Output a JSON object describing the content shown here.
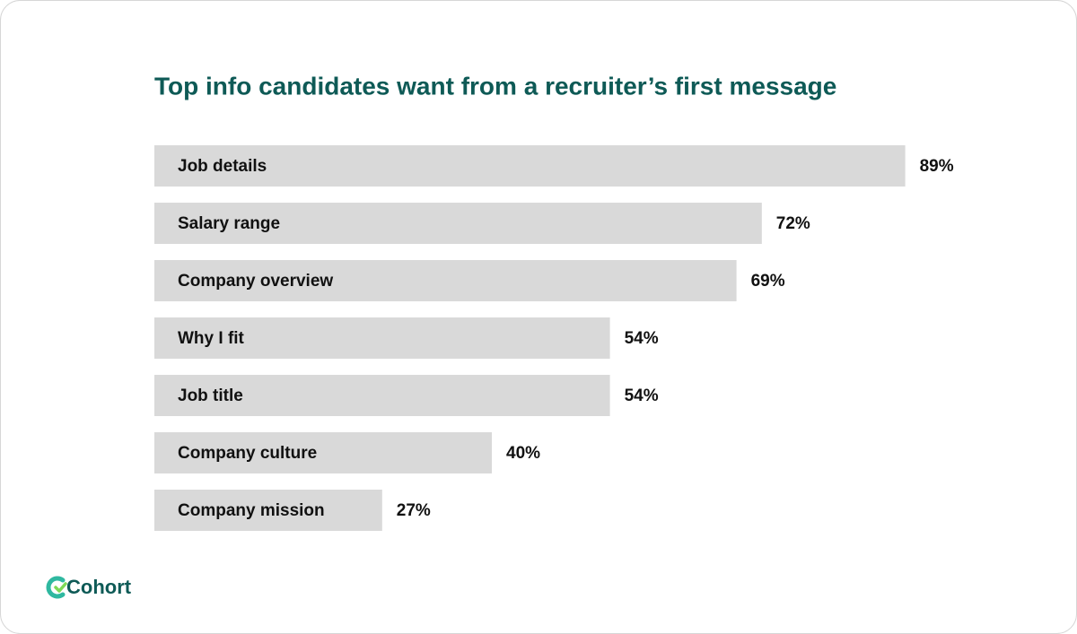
{
  "chart_data": {
    "type": "bar",
    "orientation": "horizontal",
    "title": "Top info candidates want from a recruiter’s first message",
    "categories": [
      "Job details",
      "Salary range",
      "Company overview",
      "Why I fit",
      "Job title",
      "Company culture",
      "Company mission"
    ],
    "values": [
      89,
      72,
      69,
      54,
      54,
      40,
      27
    ],
    "value_labels": [
      "89%",
      "72%",
      "69%",
      "54%",
      "54%",
      "40%",
      "27%"
    ],
    "color": "#d9d9d9"
  },
  "brand": "Cohort"
}
